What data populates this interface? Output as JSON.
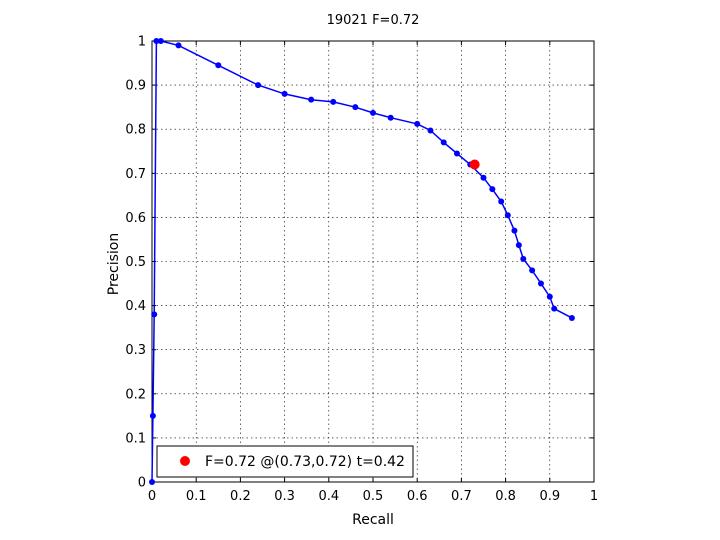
{
  "chart_data": {
    "type": "line",
    "title": "19021 F=0.72",
    "xlabel": "Recall",
    "ylabel": "Precision",
    "xlim": [
      0,
      1
    ],
    "ylim": [
      0,
      1
    ],
    "grid": true,
    "legend_position": "bottom-left",
    "xticks": [
      "0",
      "0.1",
      "0.2",
      "0.3",
      "0.4",
      "0.5",
      "0.6",
      "0.7",
      "0.8",
      "0.9",
      "1"
    ],
    "yticks": [
      "0",
      "0.1",
      "0.2",
      "0.3",
      "0.4",
      "0.5",
      "0.6",
      "0.7",
      "0.8",
      "0.9",
      "1"
    ],
    "series": [
      {
        "color": "#0000ff",
        "x": [
          0.0,
          0.002,
          0.005,
          0.01,
          0.02,
          0.06,
          0.15,
          0.24,
          0.3,
          0.36,
          0.41,
          0.46,
          0.5,
          0.54,
          0.6,
          0.63,
          0.66,
          0.69,
          0.72,
          0.75,
          0.77,
          0.79,
          0.805,
          0.82,
          0.83,
          0.84,
          0.86,
          0.88,
          0.9,
          0.91,
          0.95
        ],
        "y": [
          0.0,
          0.15,
          0.38,
          1.0,
          1.0,
          0.99,
          0.945,
          0.9,
          0.88,
          0.867,
          0.862,
          0.85,
          0.837,
          0.826,
          0.812,
          0.797,
          0.77,
          0.745,
          0.72,
          0.69,
          0.664,
          0.636,
          0.605,
          0.57,
          0.537,
          0.506,
          0.48,
          0.45,
          0.42,
          0.393,
          0.372
        ]
      }
    ],
    "highlight": {
      "x": 0.73,
      "y": 0.72,
      "color": "#ff0000",
      "label": "F=0.72 @(0.73,0.72) t=0.42"
    }
  }
}
